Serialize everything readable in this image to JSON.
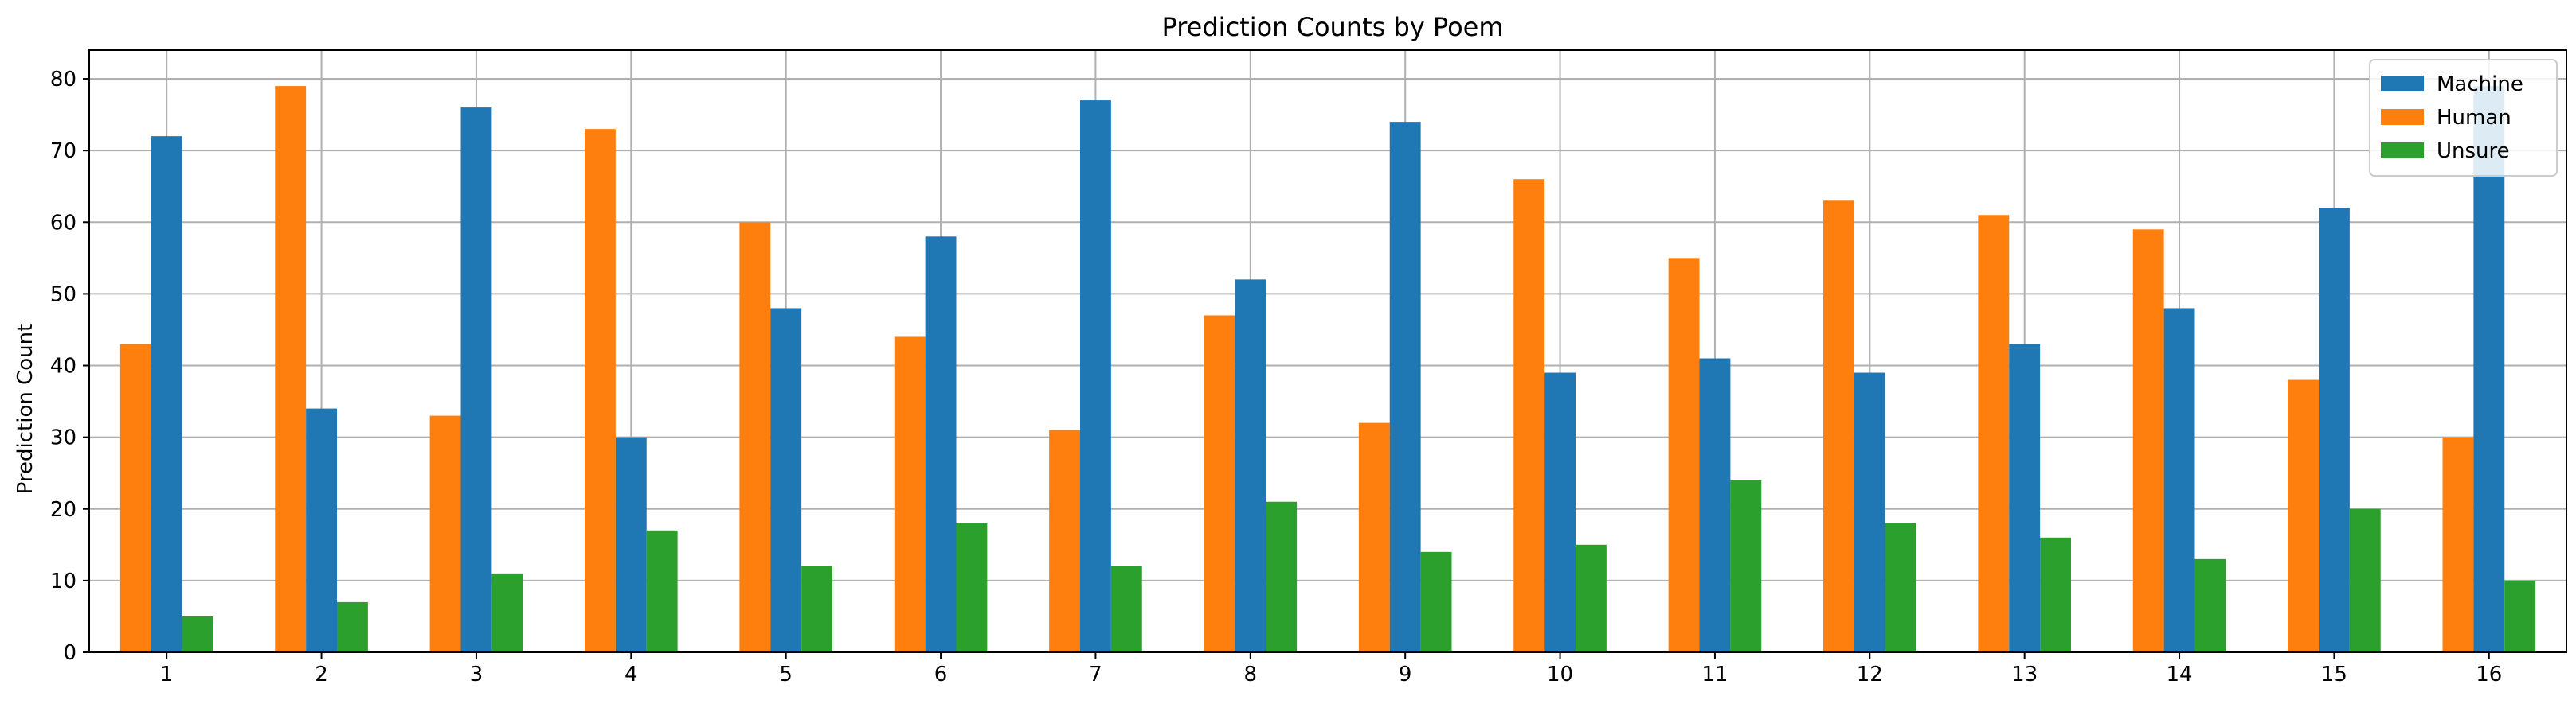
{
  "chart_data": {
    "type": "bar",
    "title": "Prediction Counts by Poem",
    "xlabel": "",
    "ylabel": "Prediction Count",
    "categories": [
      "1",
      "2",
      "3",
      "4",
      "5",
      "6",
      "7",
      "8",
      "9",
      "10",
      "11",
      "12",
      "13",
      "14",
      "15",
      "16"
    ],
    "series": [
      {
        "name": "Human",
        "color": "#ff7f0e",
        "values": [
          43,
          79,
          33,
          73,
          60,
          44,
          31,
          47,
          32,
          66,
          55,
          63,
          61,
          59,
          38,
          30
        ]
      },
      {
        "name": "Machine",
        "color": "#1f77b4",
        "values": [
          72,
          34,
          76,
          30,
          48,
          58,
          77,
          52,
          74,
          39,
          41,
          39,
          43,
          48,
          62,
          79
        ]
      },
      {
        "name": "Unsure",
        "color": "#2ca02c",
        "values": [
          5,
          7,
          11,
          17,
          12,
          18,
          12,
          21,
          14,
          15,
          24,
          18,
          16,
          13,
          20,
          10
        ]
      }
    ],
    "ylim": [
      0,
      84
    ],
    "yticks": [
      0,
      10,
      20,
      30,
      40,
      50,
      60,
      70,
      80
    ],
    "grid": true,
    "legend": {
      "position": "top-right",
      "entries": [
        "Machine",
        "Human",
        "Unsure"
      ]
    }
  }
}
